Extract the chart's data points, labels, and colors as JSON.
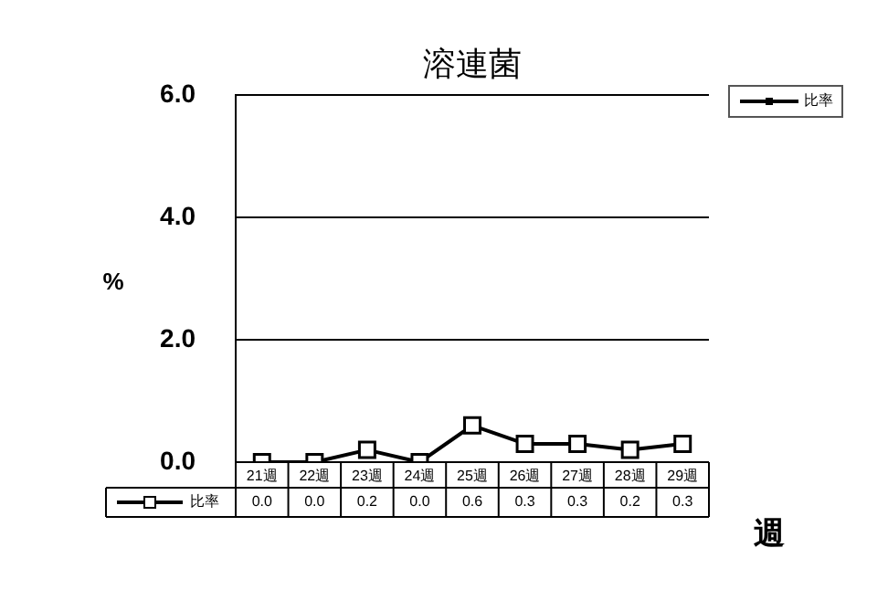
{
  "chart_data": {
    "type": "line",
    "title": "溶連菌",
    "ylabel": "%",
    "xlabel": "週",
    "categories": [
      "21週",
      "22週",
      "23週",
      "24週",
      "25週",
      "26週",
      "27週",
      "28週",
      "29週"
    ],
    "series": [
      {
        "name": "比率",
        "color": "#000000",
        "values": [
          0.0,
          0.0,
          0.2,
          0.0,
          0.6,
          0.3,
          0.3,
          0.2,
          0.3
        ],
        "value_labels": [
          "0.0",
          "0.0",
          "0.2",
          "0.0",
          "0.6",
          "0.3",
          "0.3",
          "0.2",
          "0.3"
        ]
      }
    ],
    "ylim": [
      0,
      6
    ],
    "yticks": [
      {
        "value": 0,
        "label": "0.0"
      },
      {
        "value": 2,
        "label": "2.0"
      },
      {
        "value": 4,
        "label": "4.0"
      },
      {
        "value": 6,
        "label": "6.0"
      }
    ],
    "grid": "y",
    "legend": "bottom left",
    "marker": "square",
    "line_style": "solid"
  }
}
